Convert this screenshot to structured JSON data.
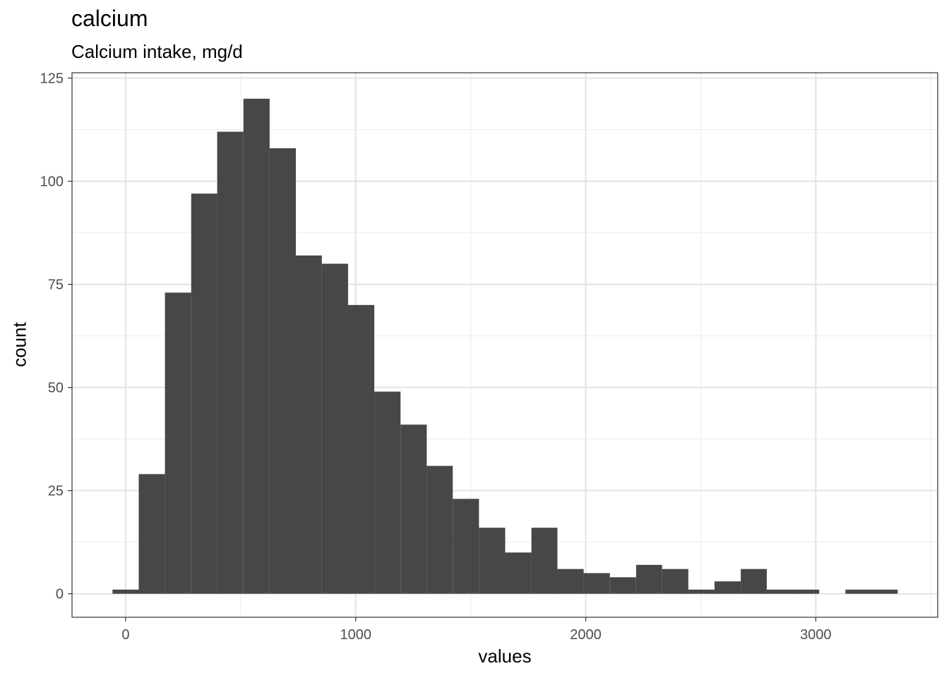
{
  "chart_data": {
    "type": "bar",
    "title": "calcium",
    "subtitle": "Calcium intake, mg/d",
    "xlabel": "values",
    "ylabel": "count",
    "xlim": [
      -233,
      3530
    ],
    "ylim": [
      -5.7,
      126.3
    ],
    "x_ticks": [
      0,
      1000,
      2000,
      3000
    ],
    "y_ticks": [
      0,
      25,
      50,
      75,
      100,
      125
    ],
    "grid": true,
    "bar_color": "#474747",
    "bins": [
      {
        "x0": -57,
        "x1": 57,
        "count": 1
      },
      {
        "x0": 57,
        "x1": 171,
        "count": 29
      },
      {
        "x0": 171,
        "x1": 285,
        "count": 73
      },
      {
        "x0": 285,
        "x1": 398,
        "count": 97
      },
      {
        "x0": 398,
        "x1": 512,
        "count": 112
      },
      {
        "x0": 512,
        "x1": 626,
        "count": 120
      },
      {
        "x0": 626,
        "x1": 740,
        "count": 108
      },
      {
        "x0": 740,
        "x1": 853,
        "count": 82
      },
      {
        "x0": 853,
        "x1": 967,
        "count": 80
      },
      {
        "x0": 967,
        "x1": 1081,
        "count": 70
      },
      {
        "x0": 1081,
        "x1": 1195,
        "count": 49
      },
      {
        "x0": 1195,
        "x1": 1309,
        "count": 41
      },
      {
        "x0": 1309,
        "x1": 1422,
        "count": 31
      },
      {
        "x0": 1422,
        "x1": 1536,
        "count": 23
      },
      {
        "x0": 1536,
        "x1": 1650,
        "count": 16
      },
      {
        "x0": 1650,
        "x1": 1764,
        "count": 10
      },
      {
        "x0": 1764,
        "x1": 1877,
        "count": 16
      },
      {
        "x0": 1877,
        "x1": 1991,
        "count": 6
      },
      {
        "x0": 1991,
        "x1": 2105,
        "count": 5
      },
      {
        "x0": 2105,
        "x1": 2219,
        "count": 4
      },
      {
        "x0": 2219,
        "x1": 2332,
        "count": 7
      },
      {
        "x0": 2332,
        "x1": 2446,
        "count": 6
      },
      {
        "x0": 2446,
        "x1": 2560,
        "count": 1
      },
      {
        "x0": 2560,
        "x1": 2674,
        "count": 3
      },
      {
        "x0": 2674,
        "x1": 2787,
        "count": 6
      },
      {
        "x0": 2787,
        "x1": 2901,
        "count": 1
      },
      {
        "x0": 2901,
        "x1": 3015,
        "count": 1
      },
      {
        "x0": 3015,
        "x1": 3129,
        "count": 0
      },
      {
        "x0": 3129,
        "x1": 3243,
        "count": 1
      },
      {
        "x0": 3243,
        "x1": 3356,
        "count": 1
      }
    ]
  }
}
